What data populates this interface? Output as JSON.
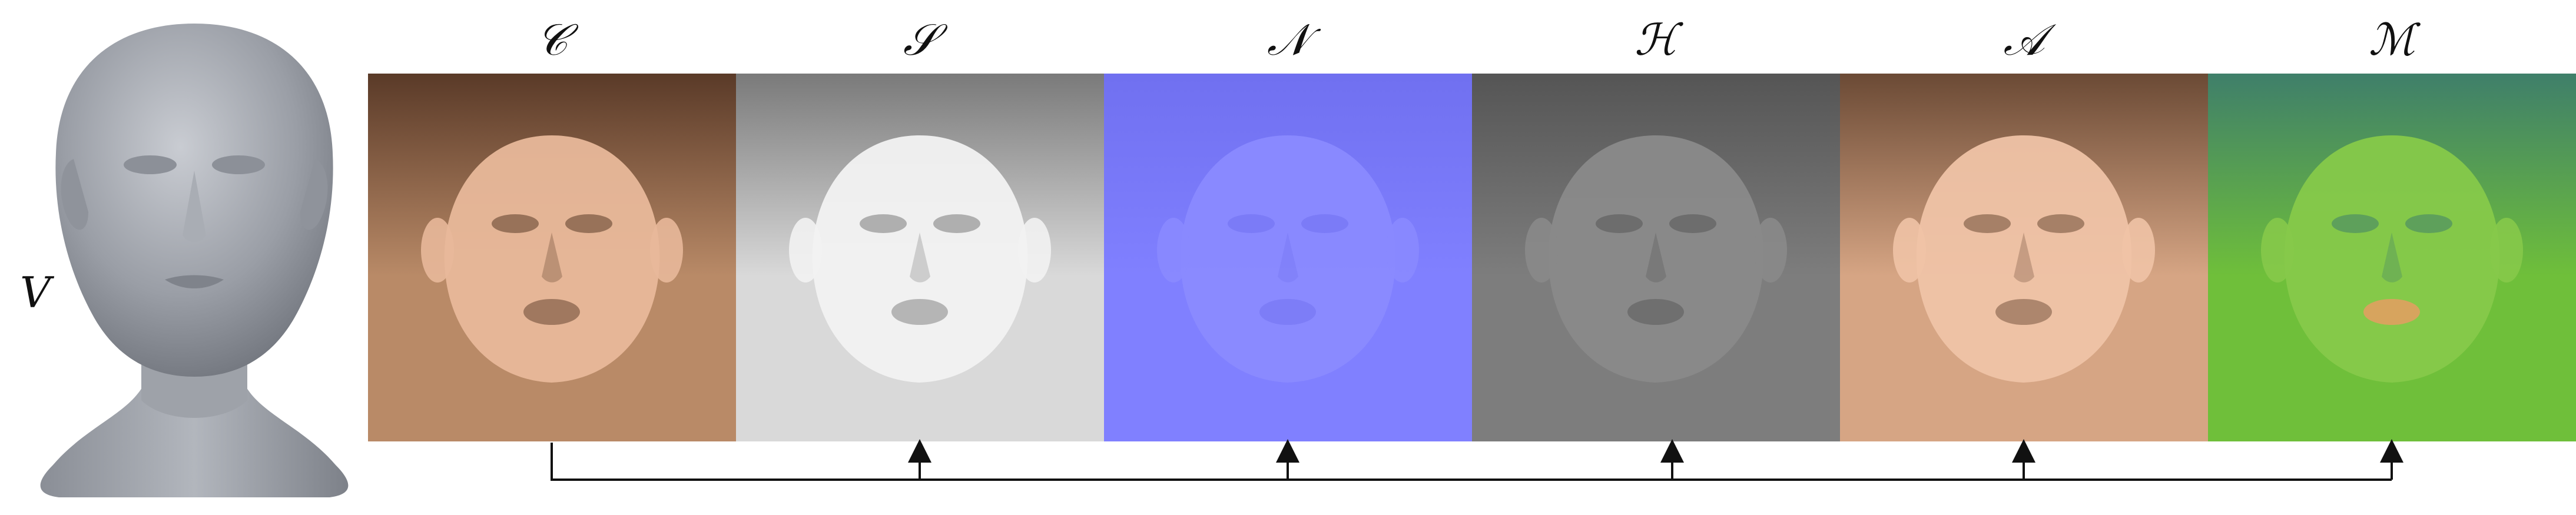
{
  "mesh": {
    "label": "V"
  },
  "maps": [
    {
      "symbol": "𝒞",
      "icon": "color-map-face-icon",
      "base": "#b98a67",
      "dark": "#5a3a28",
      "face": "#e8b89a"
    },
    {
      "symbol": "𝒮",
      "icon": "specular-map-face-icon",
      "base": "#d9d9d9",
      "dark": "#7a7a7a",
      "face": "#f2f2f2"
    },
    {
      "symbol": "𝒩",
      "icon": "normal-map-face-icon",
      "base": "#8080ff",
      "dark": "#7070f0",
      "face": "#8a8aff"
    },
    {
      "symbol": "ℋ",
      "icon": "height-map-face-icon",
      "base": "#7d7d7d",
      "dark": "#555555",
      "face": "#8a8a8a"
    },
    {
      "symbol": "𝒜",
      "icon": "albedo-map-face-icon",
      "base": "#d6a584",
      "dark": "#6b4a35",
      "face": "#efc3a6"
    },
    {
      "symbol": "ℳ",
      "icon": "material-map-face-icon",
      "base": "#6fbf3a",
      "dark": "#3f7f6a",
      "face": "#86c94a"
    }
  ]
}
